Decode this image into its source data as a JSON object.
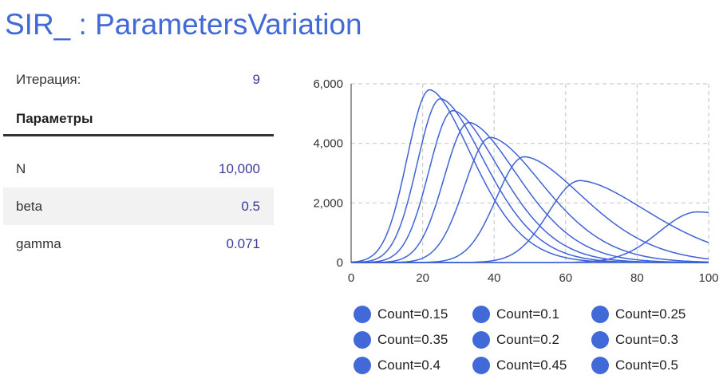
{
  "header": {
    "title": "SIR_ : ParametersVariation"
  },
  "iteration": {
    "label": "Итерация:",
    "value": "9"
  },
  "parameters": {
    "heading": "Параметры",
    "rows": [
      {
        "name": "N",
        "value": "10,000"
      },
      {
        "name": "beta",
        "value": "0.5"
      },
      {
        "name": "gamma",
        "value": "0.071"
      }
    ]
  },
  "colors": {
    "accent": "#4169d8",
    "series": "#3f62d6",
    "value_text": "#3a3a9a",
    "grid": "#cccccc"
  },
  "chart_data": {
    "type": "line",
    "xlim": [
      0,
      100
    ],
    "ylim": [
      0,
      6000
    ],
    "x_ticks": [
      "0",
      "20",
      "40",
      "60",
      "80",
      "100"
    ],
    "y_ticks": [
      "0",
      "2,000",
      "4,000",
      "6,000"
    ],
    "grid": true,
    "legend_position": "bottom",
    "series": [
      {
        "name": "Count=0.15",
        "peak_x": 22,
        "peak_y": 5800
      },
      {
        "name": "Count=0.1",
        "peak_x": 25,
        "peak_y": 5500
      },
      {
        "name": "Count=0.25",
        "peak_x": 28.5,
        "peak_y": 5100
      },
      {
        "name": "Count=0.35",
        "peak_x": 33,
        "peak_y": 4700
      },
      {
        "name": "Count=0.2",
        "peak_x": 39,
        "peak_y": 4200
      },
      {
        "name": "Count=0.3",
        "peak_x": 48.5,
        "peak_y": 3550
      },
      {
        "name": "Count=0.4",
        "peak_x": 64,
        "peak_y": 2750
      },
      {
        "name": "Count=0.45",
        "peak_x": 97,
        "peak_y": 1700
      },
      {
        "name": "Count=0.5",
        "peak_x": 300,
        "peak_y": 60
      }
    ]
  }
}
